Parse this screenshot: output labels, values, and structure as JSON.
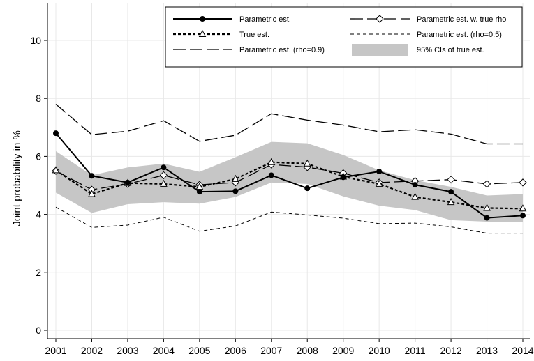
{
  "chart_data": {
    "type": "line",
    "title": "",
    "xlabel": "",
    "ylabel": "Joint probability in %",
    "x": [
      2001,
      2002,
      2003,
      2004,
      2005,
      2006,
      2007,
      2008,
      2009,
      2010,
      2011,
      2012,
      2013,
      2014
    ],
    "xlim": [
      2001,
      2014
    ],
    "ylim": [
      0,
      11
    ],
    "yticks": [
      0,
      2,
      4,
      6,
      8,
      10
    ],
    "grid": true,
    "legend_position": "top-right",
    "series": [
      {
        "key": "parametric",
        "name": "Parametric est.",
        "style": "solid",
        "marker": "filled-circle",
        "color": "#000000",
        "values": [
          6.8,
          5.33,
          5.1,
          5.62,
          4.78,
          4.8,
          5.35,
          4.9,
          5.28,
          5.48,
          5.02,
          4.78,
          3.88,
          3.96
        ]
      },
      {
        "key": "true",
        "name": "True est.",
        "style": "short-dash",
        "marker": "open-triangle",
        "color": "#000000",
        "values": [
          5.52,
          4.7,
          5.08,
          5.05,
          4.95,
          5.22,
          5.8,
          5.75,
          5.3,
          5.05,
          4.6,
          4.42,
          4.22,
          4.2
        ]
      },
      {
        "key": "rho09",
        "name": "Parametric est. (rho=0.9)",
        "style": "long-dash",
        "marker": "none",
        "color": "#000000",
        "values": [
          7.8,
          6.75,
          6.87,
          7.23,
          6.52,
          6.73,
          7.47,
          7.25,
          7.08,
          6.85,
          6.92,
          6.77,
          6.43,
          6.43
        ]
      },
      {
        "key": "truerho",
        "name": "Parametric est. w. true rho",
        "style": "long-dash",
        "marker": "open-diamond",
        "color": "#000000",
        "values": [
          5.5,
          4.85,
          5.05,
          5.35,
          5.02,
          5.1,
          5.72,
          5.63,
          5.42,
          5.1,
          5.15,
          5.2,
          5.05,
          5.1
        ]
      },
      {
        "key": "rho05",
        "name": "Parametric est. (rho=0.5)",
        "style": "thin-dash",
        "marker": "none",
        "color": "#000000",
        "values": [
          4.25,
          3.55,
          3.63,
          3.9,
          3.42,
          3.6,
          4.08,
          3.98,
          3.87,
          3.68,
          3.7,
          3.57,
          3.35,
          3.35
        ]
      }
    ],
    "band": {
      "name": "95% CIs of true est.",
      "color": "#c6c6c6",
      "lower": [
        4.75,
        4.05,
        4.35,
        4.42,
        4.37,
        4.6,
        5.1,
        5.05,
        4.62,
        4.3,
        4.15,
        3.8,
        3.75,
        3.75
      ],
      "upper": [
        6.18,
        5.35,
        5.62,
        5.75,
        5.47,
        5.97,
        6.5,
        6.45,
        6.05,
        5.52,
        5.18,
        4.95,
        4.65,
        4.7
      ]
    },
    "legend_layout": [
      [
        "parametric",
        "truerho"
      ],
      [
        "true",
        "rho05"
      ],
      [
        "rho09",
        "band"
      ]
    ]
  }
}
